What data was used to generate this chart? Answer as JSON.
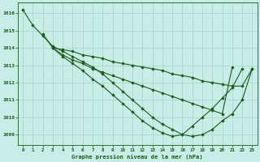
{
  "title": "Graphe pression niveau de la mer (hPa)",
  "background_color": "#c8ece6",
  "grid_color": "#a8d8d0",
  "line_color": "#1a5c1a",
  "marker_color": "#1a5c1a",
  "xlim": [
    -0.5,
    23.5
  ],
  "ylim": [
    1008.4,
    1016.6
  ],
  "yticks": [
    1009,
    1010,
    1011,
    1012,
    1013,
    1014,
    1015,
    1016
  ],
  "xticks": [
    0,
    1,
    2,
    3,
    4,
    5,
    6,
    7,
    8,
    9,
    10,
    11,
    12,
    13,
    14,
    15,
    16,
    17,
    18,
    19,
    20,
    21,
    22,
    23
  ],
  "series": [
    {
      "x": [
        0,
        1,
        2,
        3,
        4,
        5,
        6,
        7,
        8,
        9,
        10,
        11,
        12,
        13,
        14,
        15,
        16,
        17,
        18,
        19,
        20,
        21,
        22,
        23
      ],
      "y": [
        1016.2,
        1015.3,
        1014.7,
        1014.1,
        1013.8,
        1013.5,
        1013.2,
        1012.9,
        1012.5,
        1012.0,
        1011.5,
        1011.0,
        1010.5,
        1010.0,
        1009.6,
        1009.3,
        1009.0,
        1008.9,
        1009.0,
        1009.3,
        1009.8,
        1010.2,
        1011.0,
        1012.8
      ]
    },
    {
      "x": [
        3,
        4,
        5,
        6,
        7,
        8,
        9,
        10,
        11,
        12,
        13,
        14,
        15,
        16,
        17,
        18,
        19,
        20,
        21,
        22,
        23
      ],
      "y": [
        1014.0,
        1013.5,
        1013.1,
        1012.7,
        1012.2,
        1011.8,
        1011.3,
        1010.8,
        1010.3,
        1009.8,
        1009.4,
        1009.1,
        1008.9,
        1009.0,
        1009.5,
        1010.0,
        1010.5,
        1011.1,
        1011.7,
        1012.8,
        null
      ]
    },
    {
      "x": [
        2,
        3,
        4,
        5,
        6,
        7,
        8,
        9,
        10,
        11,
        12,
        13,
        14,
        15,
        16,
        17,
        18,
        19,
        20,
        21,
        22,
        23
      ],
      "y": [
        1014.8,
        1014.0,
        1013.6,
        1013.3,
        1013.1,
        1012.8,
        1012.6,
        1012.4,
        1012.2,
        1012.0,
        1011.8,
        1011.6,
        1011.4,
        1011.2,
        1011.0,
        1010.8,
        1010.6,
        1010.4,
        1010.2,
        1012.9,
        null,
        null
      ]
    },
    {
      "x": [
        3,
        4,
        5,
        6,
        7,
        8,
        9,
        10,
        11,
        12,
        13,
        14,
        15,
        16,
        17,
        18,
        19,
        20,
        21,
        22,
        23
      ],
      "y": [
        1014.0,
        1013.9,
        1013.8,
        1013.6,
        1013.5,
        1013.4,
        1013.2,
        1013.1,
        1013.0,
        1012.9,
        1012.8,
        1012.7,
        1012.5,
        1012.4,
        1012.3,
        1012.1,
        1012.0,
        1011.9,
        1011.8,
        1011.8,
        1012.8
      ]
    }
  ],
  "figsize": [
    3.2,
    2.0
  ],
  "dpi": 100
}
